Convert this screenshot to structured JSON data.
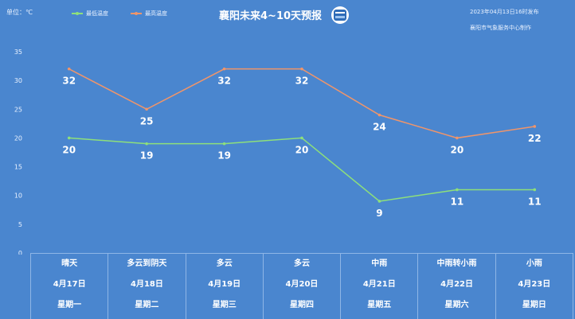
{
  "header": {
    "unit": "单位：℃",
    "title": "襄阳未来4~10天预报",
    "issued": "2023年04月13日16时发布",
    "maker": "襄阳市气象服务中心制作"
  },
  "colors": {
    "background": "#4a86cf",
    "low_line": "#8ee07a",
    "high_line": "#f0956a"
  },
  "chart_data": {
    "type": "line",
    "categories": [
      "4月17日",
      "4月18日",
      "4月19日",
      "4月20日",
      "4月21日",
      "4月22日",
      "4月23日"
    ],
    "series": [
      {
        "name": "最低温度",
        "values": [
          20,
          19,
          19,
          20,
          9,
          11,
          11
        ]
      },
      {
        "name": "最高温度",
        "values": [
          32,
          25,
          32,
          32,
          24,
          20,
          22
        ]
      }
    ],
    "yticks": [
      0,
      5,
      10,
      15,
      20,
      25,
      30,
      35
    ],
    "ylim": [
      0,
      35
    ],
    "grid": false,
    "legend": "top-left"
  },
  "forecast": [
    {
      "weather": "晴天",
      "date": "4月17日",
      "weekday": "星期一"
    },
    {
      "weather": "多云到阴天",
      "date": "4月18日",
      "weekday": "星期二"
    },
    {
      "weather": "多云",
      "date": "4月19日",
      "weekday": "星期三"
    },
    {
      "weather": "多云",
      "date": "4月20日",
      "weekday": "星期四"
    },
    {
      "weather": "中雨",
      "date": "4月21日",
      "weekday": "星期五"
    },
    {
      "weather": "中雨转小雨",
      "date": "4月22日",
      "weekday": "星期六"
    },
    {
      "weather": "小雨",
      "date": "4月23日",
      "weekday": "星期日"
    }
  ]
}
